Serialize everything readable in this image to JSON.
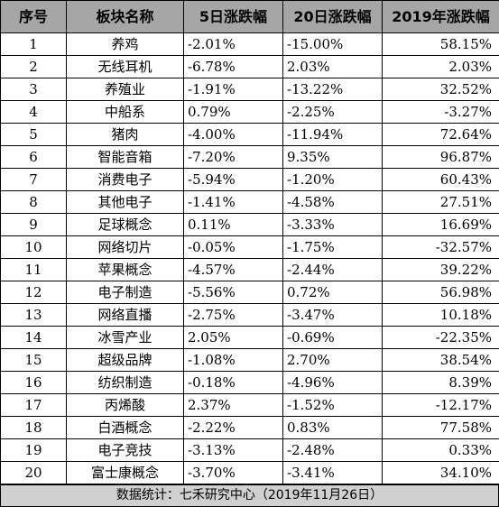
{
  "table": {
    "headers": [
      "序号",
      "板块名称",
      "5日涨跌幅",
      "20日涨跌幅",
      "2019年涨跌幅"
    ],
    "rows": [
      [
        "1",
        "养鸡",
        "-2.01%",
        "-15.00%",
        "58.15%"
      ],
      [
        "2",
        "无线耳机",
        "-6.78%",
        "2.03%",
        "2.03%"
      ],
      [
        "3",
        "养殖业",
        "-1.91%",
        "-13.22%",
        "32.52%"
      ],
      [
        "4",
        "中船系",
        "0.79%",
        "-2.25%",
        "-3.27%"
      ],
      [
        "5",
        "猪肉",
        "-4.00%",
        "-11.94%",
        "72.64%"
      ],
      [
        "6",
        "智能音箱",
        "-7.20%",
        "9.35%",
        "96.87%"
      ],
      [
        "7",
        "消费电子",
        "-5.94%",
        "-1.20%",
        "60.43%"
      ],
      [
        "8",
        "其他电子",
        "-1.41%",
        "-4.58%",
        "27.51%"
      ],
      [
        "9",
        "足球概念",
        "0.11%",
        "-3.33%",
        "16.69%"
      ],
      [
        "10",
        "网络切片",
        "-0.05%",
        "-1.75%",
        "-32.57%"
      ],
      [
        "11",
        "苹果概念",
        "-4.57%",
        "-2.44%",
        "39.22%"
      ],
      [
        "12",
        "电子制造",
        "-5.56%",
        "0.72%",
        "56.98%"
      ],
      [
        "13",
        "网络直播",
        "-2.75%",
        "-3.47%",
        "10.18%"
      ],
      [
        "14",
        "冰雪产业",
        "2.05%",
        "-0.69%",
        "-22.35%"
      ],
      [
        "15",
        "超级品牌",
        "-1.08%",
        "2.70%",
        "38.54%"
      ],
      [
        "16",
        "纺织制造",
        "-0.18%",
        "-4.96%",
        "8.39%"
      ],
      [
        "17",
        "丙烯酸",
        "2.37%",
        "-1.52%",
        "-12.17%"
      ],
      [
        "18",
        "白酒概念",
        "-2.22%",
        "0.83%",
        "77.58%"
      ],
      [
        "19",
        "电子竞技",
        "-3.13%",
        "-2.48%",
        "0.33%"
      ],
      [
        "20",
        "富士康概念",
        "-3.70%",
        "-3.41%",
        "34.10%"
      ]
    ]
  },
  "footer": {
    "text": "数据统计：七禾研究中心（2019年11月26日）"
  }
}
